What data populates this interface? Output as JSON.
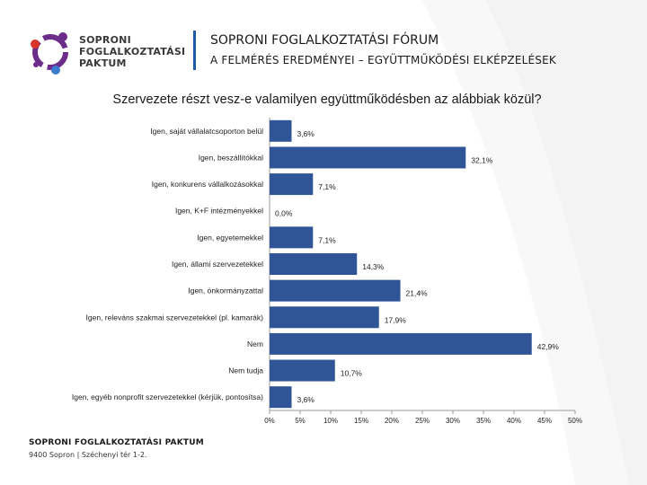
{
  "header": {
    "logo_line1": "SOPRONI",
    "logo_line2": "FOGLALKOZTATÁSI",
    "logo_line3": "PAKTUM",
    "title": "SOPRONI FOGLALKOZTATÁSI FÓRUM",
    "subtitle": "A FELMÉRÉS EREDMÉNYEI – EGYÜTTMŰKÖDÉSI ELKÉPZELÉSEK"
  },
  "footer": {
    "name": "SOPRONI FOGLALKOZTATÁSI PAKTUM",
    "address": "9400 Sopron  | Széchenyi tér 1-2."
  },
  "colors": {
    "bar": "#2f5597",
    "accent_blue": "#1f5aa6",
    "logo_purple": "#6b2c8a",
    "logo_red": "#d9342b",
    "logo_blue": "#3b7bd0"
  },
  "chart_data": {
    "type": "bar",
    "orientation": "horizontal",
    "title": "Szervezete részt vesz-e valamilyen együttműködésben az alábbiak közül?",
    "categories": [
      "Igen, saját vállalatcsoporton belül",
      "Igen, beszállítókkal",
      "Igen, konkurens vállalkozásokkal",
      "Igen, K+F intézményekkel",
      "Igen, egyetemekkel",
      "Igen, állami szervezetekkel",
      "Igen, önkormányzattal",
      "Igen, releváns szakmai szervezetekkel (pl. kamarák)",
      "Nem",
      "Nem tudja",
      "Igen, egyéb nonprofit szervezetekkel (kérjük, pontosítsa)"
    ],
    "values": [
      3.6,
      32.1,
      7.1,
      0.0,
      7.1,
      14.3,
      21.4,
      17.9,
      42.9,
      10.7,
      3.6
    ],
    "value_labels": [
      "3,6%",
      "32,1%",
      "7,1%",
      "0,0%",
      "7,1%",
      "14,3%",
      "21,4%",
      "17,9%",
      "42,9%",
      "10,7%",
      "3,6%"
    ],
    "x_ticks": [
      "0%",
      "5%",
      "10%",
      "15%",
      "20%",
      "25%",
      "30%",
      "35%",
      "40%",
      "45%",
      "50%"
    ],
    "xlim": [
      0,
      50
    ],
    "xlabel": "",
    "ylabel": "",
    "grid": false,
    "legend": "none"
  }
}
